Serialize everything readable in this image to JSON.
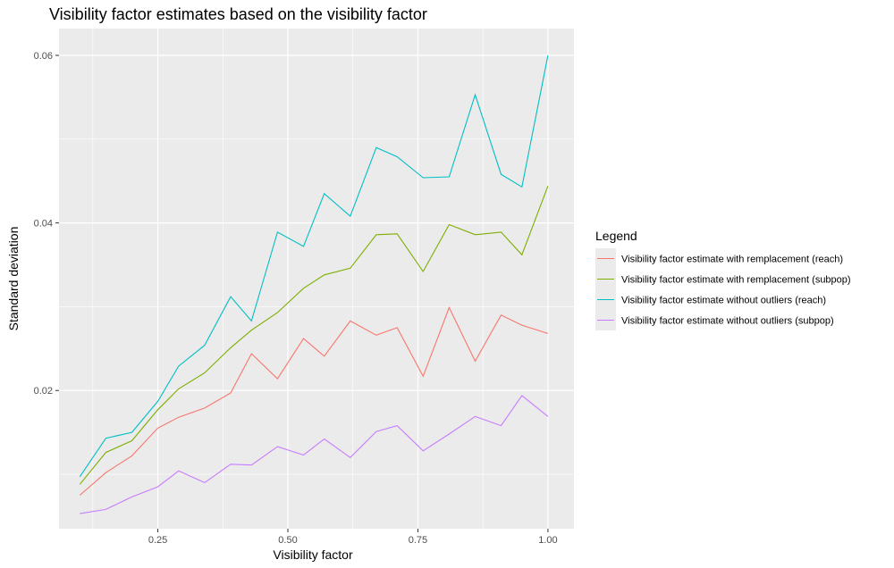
{
  "chart_data": {
    "type": "line",
    "title": "Visibility factor estimates based on the visibility factor",
    "xlabel": "Visibility factor",
    "ylabel": "Standard deviation",
    "xlim": [
      0.06,
      1.05
    ],
    "ylim": [
      0.0035,
      0.0632
    ],
    "x_ticks": [
      0.25,
      0.5,
      0.75,
      1.0
    ],
    "x_tick_labels": [
      "0.25",
      "0.50",
      "0.75",
      "1.00"
    ],
    "y_ticks": [
      0.02,
      0.04,
      0.06
    ],
    "y_tick_labels": [
      "0.02",
      "0.04",
      "0.06"
    ],
    "grid": true,
    "legend_title": "Legend",
    "legend_position": "right",
    "x": [
      0.1,
      0.15,
      0.2,
      0.25,
      0.29,
      0.34,
      0.39,
      0.43,
      0.48,
      0.53,
      0.57,
      0.62,
      0.67,
      0.71,
      0.76,
      0.81,
      0.86,
      0.91,
      0.95,
      1.0
    ],
    "series": [
      {
        "name": "Visibility factor estimate with remplacement (reach)",
        "color": "#F8766D",
        "values": [
          0.0075,
          0.0102,
          0.0122,
          0.0155,
          0.0168,
          0.0179,
          0.0197,
          0.0244,
          0.0214,
          0.0262,
          0.0241,
          0.0283,
          0.0266,
          0.0275,
          0.0217,
          0.0299,
          0.0235,
          0.029,
          0.0278,
          0.0268
        ]
      },
      {
        "name": "Visibility factor estimate with remplacement (subpop)",
        "color": "#7CAE00",
        "values": [
          0.0088,
          0.0126,
          0.014,
          0.0177,
          0.0202,
          0.0221,
          0.0251,
          0.0272,
          0.0293,
          0.0322,
          0.0338,
          0.0346,
          0.0386,
          0.0387,
          0.0342,
          0.0398,
          0.0386,
          0.0389,
          0.0362,
          0.0444
        ]
      },
      {
        "name": "Visibility factor estimate without outliers (reach)",
        "color": "#00BFC4",
        "values": [
          0.0097,
          0.0143,
          0.015,
          0.0187,
          0.0229,
          0.0254,
          0.0312,
          0.0283,
          0.0389,
          0.0372,
          0.0435,
          0.0408,
          0.049,
          0.0479,
          0.0454,
          0.0455,
          0.0553,
          0.0458,
          0.0443,
          0.06
        ]
      },
      {
        "name": "Visibility factor estimate without outliers (subpop)",
        "color": "#C77CFF",
        "values": [
          0.0053,
          0.0058,
          0.0073,
          0.0085,
          0.0104,
          0.009,
          0.0112,
          0.0111,
          0.0133,
          0.0123,
          0.0142,
          0.012,
          0.0151,
          0.0158,
          0.0128,
          0.0148,
          0.0169,
          0.0158,
          0.0194,
          0.0169
        ]
      }
    ]
  }
}
